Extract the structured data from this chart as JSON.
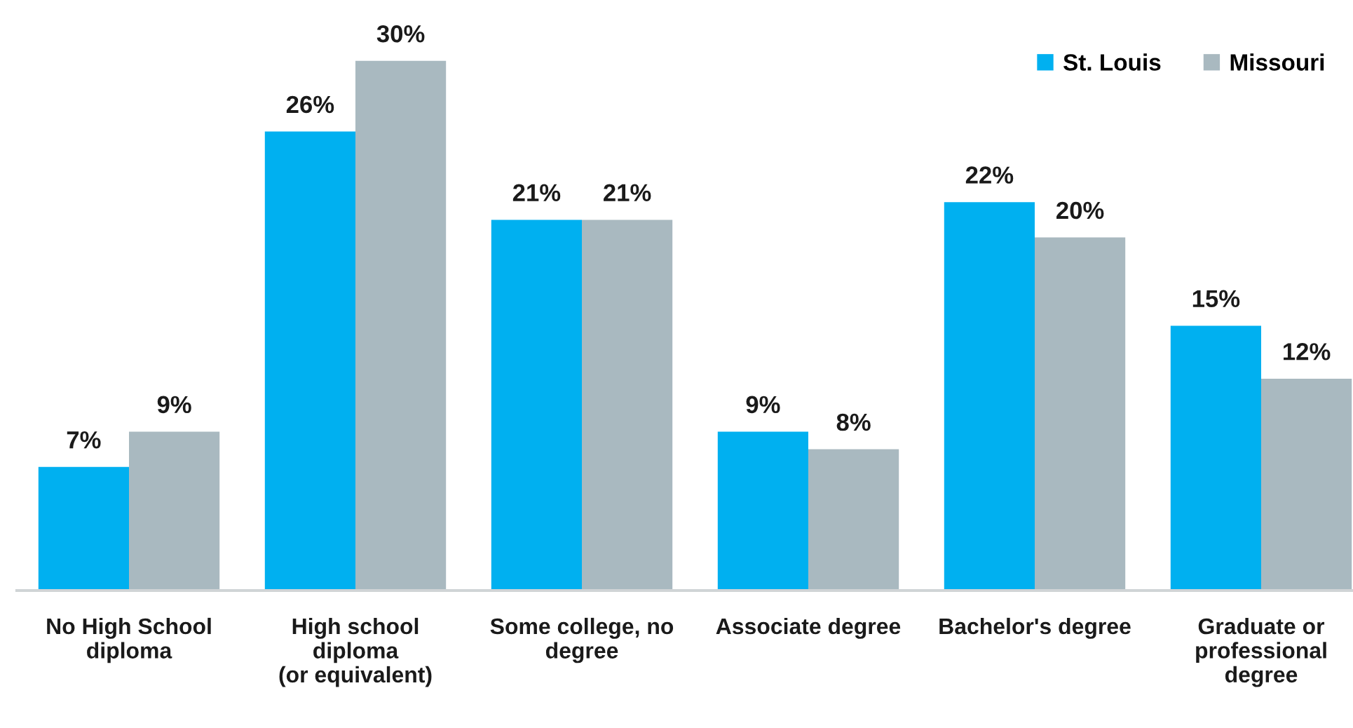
{
  "chart_data": {
    "type": "bar",
    "categories": [
      "No High School\ndiploma",
      "High school\ndiploma\n(or equivalent)",
      "Some college, no\ndegree",
      "Associate degree",
      "Bachelor's degree",
      "Graduate or\nprofessional\ndegree"
    ],
    "series": [
      {
        "name": "St. Louis",
        "color": "#00b0f0",
        "values": [
          7,
          26,
          21,
          9,
          22,
          15
        ],
        "value_labels": [
          "7%",
          "26%",
          "21%",
          "9%",
          "22%",
          "15%"
        ]
      },
      {
        "name": "Missouri",
        "color": "#a9b9c0",
        "values": [
          9,
          30,
          21,
          8,
          20,
          12
        ],
        "value_labels": [
          "9%",
          "30%",
          "21%",
          "8%",
          "20%",
          "12%"
        ]
      }
    ],
    "legend": "top right",
    "grid": false
  }
}
